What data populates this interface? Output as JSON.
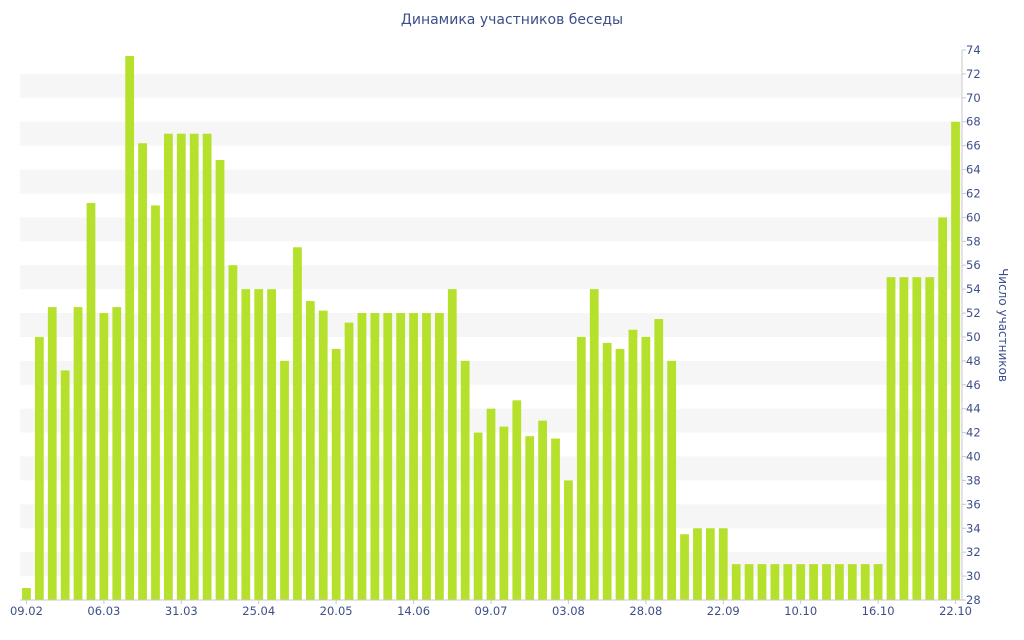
{
  "chart_data": {
    "type": "bar",
    "title": "Динамика участников беседы",
    "xlabel": "",
    "ylabel": "Число участников",
    "ylim": [
      28,
      74
    ],
    "y_ticks": [
      28,
      30,
      32,
      34,
      36,
      38,
      40,
      42,
      44,
      46,
      48,
      50,
      52,
      54,
      56,
      58,
      60,
      62,
      64,
      66,
      68,
      70,
      72,
      74
    ],
    "y_axis_side": "right",
    "x_tick_labels": [
      {
        "index": 0,
        "label": "09.02"
      },
      {
        "index": 6,
        "label": "06.03"
      },
      {
        "index": 12,
        "label": "31.03"
      },
      {
        "index": 18,
        "label": "25.04"
      },
      {
        "index": 24,
        "label": "20.05"
      },
      {
        "index": 30,
        "label": "14.06"
      },
      {
        "index": 36,
        "label": "09.07"
      },
      {
        "index": 42,
        "label": "03.08"
      },
      {
        "index": 48,
        "label": "28.08"
      },
      {
        "index": 54,
        "label": "22.09"
      },
      {
        "index": 60,
        "label": "10.10"
      },
      {
        "index": 66,
        "label": "16.10"
      },
      {
        "index": 72,
        "label": "22.10"
      }
    ],
    "values": [
      29,
      50,
      52.5,
      47.2,
      52.5,
      61.2,
      52,
      52.5,
      73.5,
      66.2,
      61,
      67,
      67,
      67,
      67,
      64.8,
      56,
      54,
      54,
      54,
      48,
      57.5,
      53,
      52.2,
      49,
      51.2,
      52,
      52,
      52,
      52,
      52,
      52,
      52,
      54,
      48,
      42,
      44,
      42.5,
      44.7,
      41.7,
      43,
      41.5,
      38,
      50,
      54,
      49.5,
      49,
      50.6,
      50,
      51.5,
      48,
      33.5,
      34,
      34,
      34,
      31,
      31,
      31,
      31,
      31,
      31,
      31,
      31,
      31,
      31,
      31,
      31,
      55,
      55,
      55,
      55,
      60,
      68
    ],
    "bar_color": "#b5e02b",
    "band_color": "#f6f6f6",
    "text_color": "#3d4f8a",
    "grid": "horizontal-bands",
    "legend": "none"
  }
}
